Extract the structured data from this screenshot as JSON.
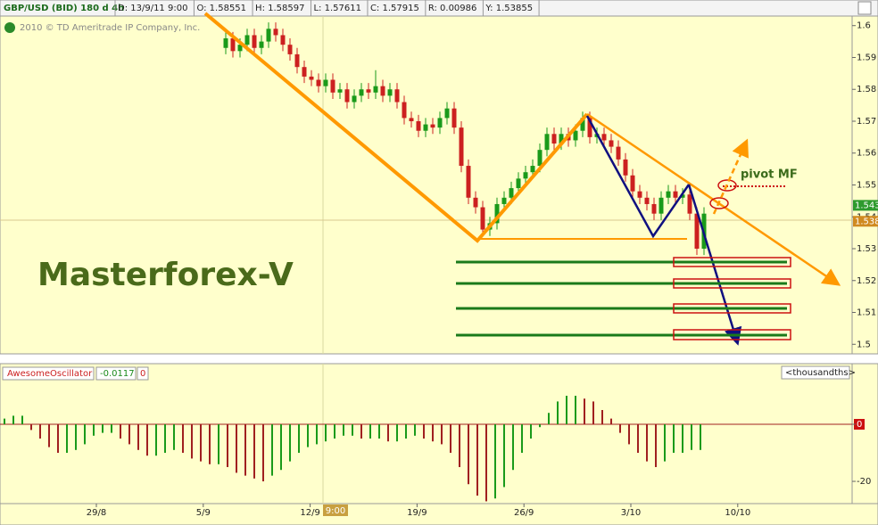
{
  "header": {
    "symbol": "GBP/USD (BID) 180 d 4h",
    "fields": [
      "D: 13/9/11 9:00",
      "O: 1.58551",
      "H: 1.58597",
      "L: 1.57611",
      "C: 1.57915",
      "R: 0.00986",
      "Y: 1.53855"
    ],
    "copyright": "2010 © TD Ameritrade IP Company, Inc."
  },
  "chart_data": [
    {
      "type": "candlestick",
      "ylim": [
        1.497,
        1.603
      ],
      "yticks": [
        1.6,
        1.59,
        1.58,
        1.57,
        1.56,
        1.55,
        1.54,
        1.53,
        1.52,
        1.51,
        1.5
      ],
      "price_tags": [
        {
          "value": 1.5436,
          "label": "1.543",
          "color": "#2e9a2e"
        },
        {
          "value": 1.5386,
          "label": "1.538",
          "color": "#d08a20"
        }
      ],
      "x_labels": [
        "29/8",
        "5/9",
        "12/9",
        "19/9",
        "26/9",
        "3/10",
        "10/10"
      ],
      "cursor_label": "9:00",
      "brand": "Masterforex-V",
      "pivot_label": "pivot MF",
      "up_color": "#1a9a1a",
      "down_color": "#cc2020",
      "candles": [
        [
          1.593,
          1.598,
          1.591,
          1.596
        ],
        [
          1.596,
          1.598,
          1.59,
          1.592
        ],
        [
          1.592,
          1.596,
          1.59,
          1.594
        ],
        [
          1.594,
          1.599,
          1.592,
          1.597
        ],
        [
          1.597,
          1.599,
          1.591,
          1.593
        ],
        [
          1.593,
          1.597,
          1.591,
          1.595
        ],
        [
          1.595,
          1.601,
          1.593,
          1.599
        ],
        [
          1.599,
          1.601,
          1.595,
          1.597
        ],
        [
          1.597,
          1.599,
          1.592,
          1.594
        ],
        [
          1.594,
          1.596,
          1.589,
          1.591
        ],
        [
          1.591,
          1.593,
          1.585,
          1.587
        ],
        [
          1.587,
          1.589,
          1.582,
          1.584
        ],
        [
          1.584,
          1.586,
          1.581,
          1.583
        ],
        [
          1.583,
          1.585,
          1.579,
          1.581
        ],
        [
          1.581,
          1.585,
          1.579,
          1.583
        ],
        [
          1.583,
          1.585,
          1.577,
          1.579
        ],
        [
          1.579,
          1.582,
          1.577,
          1.58
        ],
        [
          1.58,
          1.582,
          1.574,
          1.576
        ],
        [
          1.576,
          1.58,
          1.574,
          1.578
        ],
        [
          1.578,
          1.582,
          1.576,
          1.58
        ],
        [
          1.58,
          1.582,
          1.577,
          1.579
        ],
        [
          1.579,
          1.586,
          1.577,
          1.581
        ],
        [
          1.581,
          1.583,
          1.576,
          1.578
        ],
        [
          1.578,
          1.582,
          1.576,
          1.58
        ],
        [
          1.58,
          1.582,
          1.574,
          1.576
        ],
        [
          1.576,
          1.578,
          1.569,
          1.571
        ],
        [
          1.571,
          1.573,
          1.568,
          1.57
        ],
        [
          1.57,
          1.572,
          1.565,
          1.567
        ],
        [
          1.567,
          1.571,
          1.565,
          1.569
        ],
        [
          1.569,
          1.571,
          1.566,
          1.568
        ],
        [
          1.568,
          1.573,
          1.566,
          1.571
        ],
        [
          1.571,
          1.576,
          1.569,
          1.574
        ],
        [
          1.574,
          1.576,
          1.566,
          1.568
        ],
        [
          1.568,
          1.57,
          1.554,
          1.556
        ],
        [
          1.556,
          1.558,
          1.544,
          1.546
        ],
        [
          1.546,
          1.548,
          1.541,
          1.543
        ],
        [
          1.543,
          1.545,
          1.534,
          1.536
        ],
        [
          1.536,
          1.54,
          1.534,
          1.538
        ],
        [
          1.538,
          1.546,
          1.536,
          1.544
        ],
        [
          1.544,
          1.548,
          1.542,
          1.546
        ],
        [
          1.546,
          1.551,
          1.544,
          1.549
        ],
        [
          1.549,
          1.554,
          1.547,
          1.552
        ],
        [
          1.552,
          1.556,
          1.55,
          1.554
        ],
        [
          1.554,
          1.558,
          1.552,
          1.556
        ],
        [
          1.556,
          1.563,
          1.554,
          1.561
        ],
        [
          1.561,
          1.568,
          1.559,
          1.566
        ],
        [
          1.566,
          1.568,
          1.561,
          1.563
        ],
        [
          1.563,
          1.568,
          1.561,
          1.566
        ],
        [
          1.566,
          1.568,
          1.562,
          1.564
        ],
        [
          1.564,
          1.569,
          1.562,
          1.567
        ],
        [
          1.567,
          1.573,
          1.565,
          1.571
        ],
        [
          1.571,
          1.573,
          1.563,
          1.565
        ],
        [
          1.565,
          1.568,
          1.563,
          1.566
        ],
        [
          1.566,
          1.568,
          1.562,
          1.564
        ],
        [
          1.564,
          1.566,
          1.56,
          1.562
        ],
        [
          1.562,
          1.564,
          1.556,
          1.558
        ],
        [
          1.558,
          1.56,
          1.551,
          1.553
        ],
        [
          1.553,
          1.555,
          1.546,
          1.548
        ],
        [
          1.548,
          1.55,
          1.544,
          1.546
        ],
        [
          1.546,
          1.548,
          1.542,
          1.544
        ],
        [
          1.544,
          1.546,
          1.539,
          1.541
        ],
        [
          1.541,
          1.548,
          1.539,
          1.546
        ],
        [
          1.546,
          1.55,
          1.544,
          1.548
        ],
        [
          1.548,
          1.55,
          1.544,
          1.546
        ],
        [
          1.546,
          1.549,
          1.544,
          1.547
        ],
        [
          1.547,
          1.549,
          1.539,
          1.541
        ],
        [
          1.541,
          1.543,
          1.528,
          1.53
        ],
        [
          1.53,
          1.543,
          1.528,
          1.541
        ]
      ]
    },
    {
      "type": "bar",
      "title": "AwesomeOscillator",
      "readings": [
        "-0.0117",
        "0"
      ],
      "unit": "<thousandths>",
      "ylim": [
        -27.8,
        15
      ],
      "yticks": [
        0,
        -20
      ],
      "up_color": "#1a9a1a",
      "down_color": "#a02020",
      "values": [
        2,
        3,
        3,
        -2,
        -5,
        -8,
        -10,
        -10,
        -9,
        -7,
        -4,
        -3,
        -3,
        -5,
        -7,
        -9,
        -11,
        -11,
        -10,
        -9,
        -10,
        -12,
        -13,
        -14,
        -14,
        -15,
        -17,
        -18,
        -19,
        -20,
        -18,
        -16,
        -13,
        -10,
        -8,
        -7,
        -6,
        -5,
        -4,
        -4,
        -5,
        -5,
        -5,
        -6,
        -6,
        -5,
        -4,
        -5,
        -6,
        -7,
        -10,
        -15,
        -21,
        -25,
        -27,
        -26,
        -22,
        -16,
        -10,
        -5,
        -1,
        4,
        8,
        10,
        10,
        9,
        8,
        5,
        2,
        -3,
        -7,
        -10,
        -13,
        -15,
        -13,
        -10,
        -10,
        -9,
        -9
      ]
    }
  ]
}
